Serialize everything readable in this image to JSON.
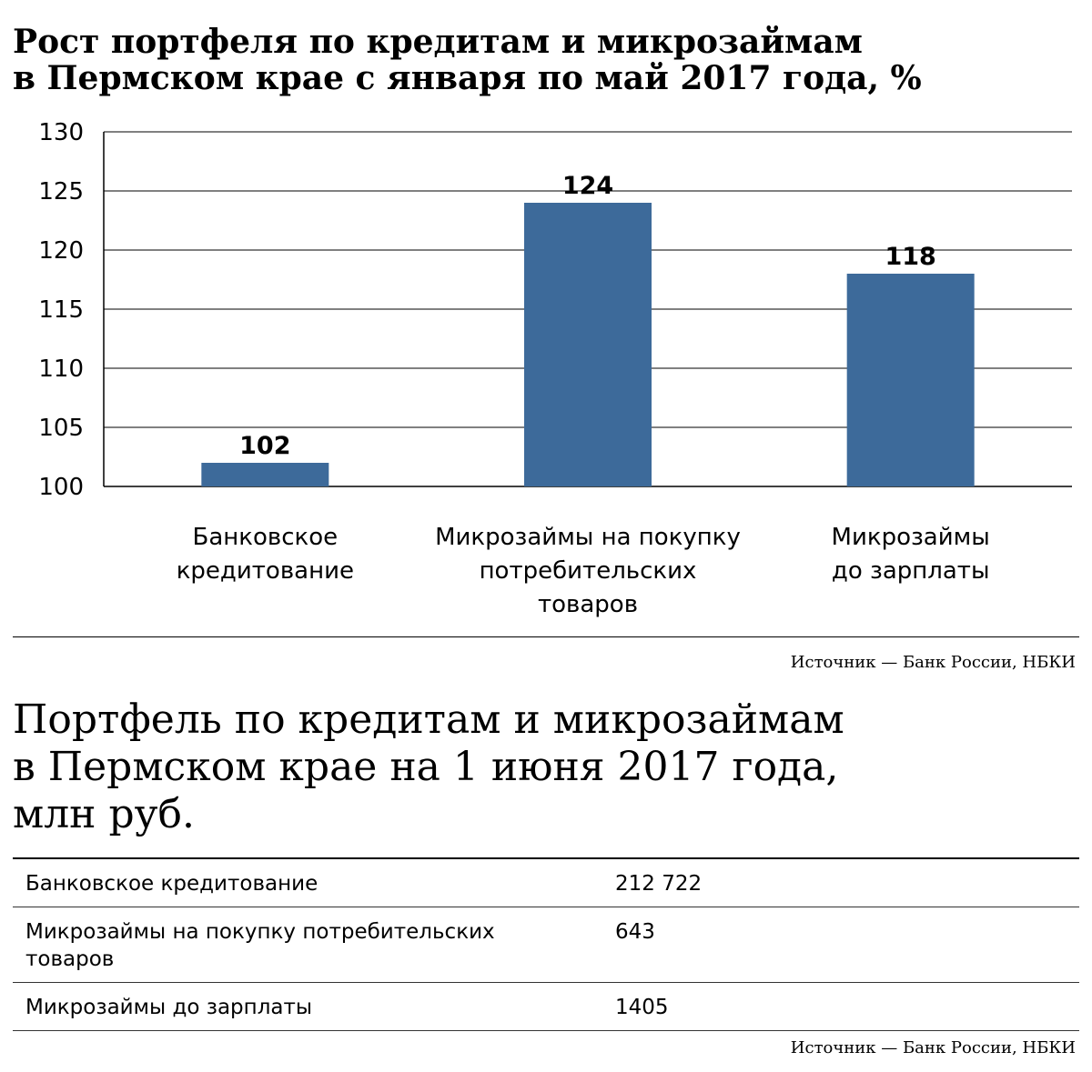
{
  "chart_title": "Рост портфеля по кредитам и микрозаймам\nв Пермском крае с января по май 2017 года, %",
  "chart_data": {
    "type": "bar",
    "title": "Рост портфеля по кредитам и микрозаймам в Пермском крае с января по май 2017 года, %",
    "categories": [
      [
        "Банковское",
        "кредитование"
      ],
      [
        "Микрозаймы на покупку",
        "потребительских",
        "товаров"
      ],
      [
        "Микрозаймы",
        "до зарплаты"
      ]
    ],
    "values": [
      102,
      124,
      118
    ],
    "ylim": [
      100,
      130
    ],
    "yticks": [
      100,
      105,
      110,
      115,
      120,
      125,
      130
    ],
    "grid": true,
    "bar_color": "#3d6a9a"
  },
  "source_1": "Источник — Банк России, НБКИ",
  "table_title": "Портфель по кредитам и микрозаймам\nв Пермском крае на 1 июня 2017 года,\nмлн руб.",
  "table": {
    "rows": [
      {
        "label": "Банковское кредитование",
        "value": "212 722"
      },
      {
        "label": "Микрозаймы на покупку потребительских товаров",
        "value": "643"
      },
      {
        "label": "Микрозаймы до зарплаты",
        "value": "1405"
      }
    ]
  },
  "source_2": "Источник — Банк России, НБКИ"
}
